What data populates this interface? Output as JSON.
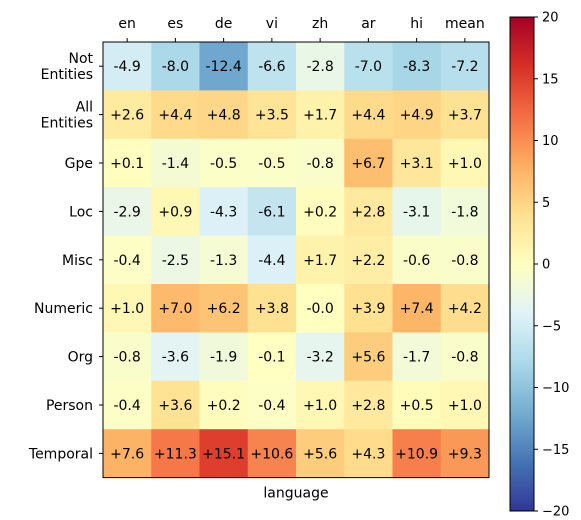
{
  "chart_data": {
    "type": "heatmap",
    "title": "",
    "xlabel": "language",
    "ylabel": "",
    "x_categories": [
      "en",
      "es",
      "de",
      "vi",
      "zh",
      "ar",
      "hi",
      "mean"
    ],
    "y_categories": [
      "Not\nEntities",
      "All\nEntities",
      "Gpe",
      "Loc",
      "Misc",
      "Numeric",
      "Org",
      "Person",
      "Temporal"
    ],
    "values": [
      [
        -4.9,
        -8.0,
        -12.4,
        -6.6,
        -2.8,
        -7.0,
        -8.3,
        -7.2
      ],
      [
        2.6,
        4.4,
        4.8,
        3.5,
        1.7,
        4.4,
        4.9,
        3.7
      ],
      [
        0.1,
        -1.4,
        -0.5,
        -0.5,
        -0.8,
        6.7,
        3.1,
        1.0
      ],
      [
        -2.9,
        0.9,
        -4.3,
        -6.1,
        0.2,
        2.8,
        -3.1,
        -1.8
      ],
      [
        -0.4,
        -2.5,
        -1.3,
        -4.4,
        1.7,
        2.2,
        -0.6,
        -0.8
      ],
      [
        1.0,
        7.0,
        6.2,
        3.8,
        -0.0,
        3.9,
        7.4,
        4.2
      ],
      [
        -0.8,
        -3.6,
        -1.9,
        -0.1,
        -3.2,
        5.6,
        -1.7,
        -0.8
      ],
      [
        -0.4,
        3.6,
        0.2,
        -0.4,
        1.0,
        2.8,
        0.5,
        1.0
      ],
      [
        7.6,
        11.3,
        15.1,
        10.6,
        5.6,
        4.3,
        10.9,
        9.3
      ]
    ],
    "cell_labels": [
      [
        "-4.9",
        "-8.0",
        "-12.4",
        "-6.6",
        "-2.8",
        "-7.0",
        "-8.3",
        "-7.2"
      ],
      [
        "+2.6",
        "+4.4",
        "+4.8",
        "+3.5",
        "+1.7",
        "+4.4",
        "+4.9",
        "+3.7"
      ],
      [
        "+0.1",
        "-1.4",
        "-0.5",
        "-0.5",
        "-0.8",
        "+6.7",
        "+3.1",
        "+1.0"
      ],
      [
        "-2.9",
        "+0.9",
        "-4.3",
        "-6.1",
        "+0.2",
        "+2.8",
        "-3.1",
        "-1.8"
      ],
      [
        "-0.4",
        "-2.5",
        "-1.3",
        "-4.4",
        "+1.7",
        "+2.2",
        "-0.6",
        "-0.8"
      ],
      [
        "+1.0",
        "+7.0",
        "+6.2",
        "+3.8",
        "-0.0",
        "+3.9",
        "+7.4",
        "+4.2"
      ],
      [
        "-0.8",
        "-3.6",
        "-1.9",
        "-0.1",
        "-3.2",
        "+5.6",
        "-1.7",
        "-0.8"
      ],
      [
        "-0.4",
        "+3.6",
        "+0.2",
        "-0.4",
        "+1.0",
        "+2.8",
        "+0.5",
        "+1.0"
      ],
      [
        "+7.6",
        "+11.3",
        "+15.1",
        "+10.6",
        "+5.6",
        "+4.3",
        "+10.9",
        "+9.3"
      ]
    ],
    "colorbar": {
      "min": -20,
      "max": 20,
      "ticks": [
        20,
        15,
        10,
        5,
        0,
        -5,
        -10,
        -15,
        -20
      ],
      "tick_labels": [
        "20",
        "15",
        "10",
        "5",
        "0",
        "−5",
        "−10",
        "−15",
        "−20"
      ],
      "colormap": "RdYlBu_r"
    },
    "grid": false
  }
}
